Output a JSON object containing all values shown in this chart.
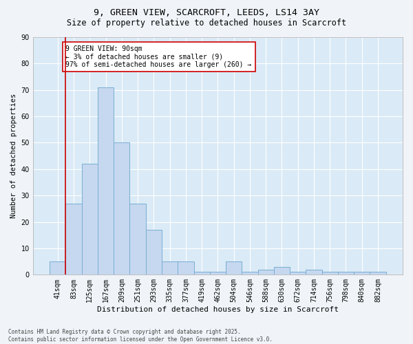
{
  "title": "9, GREEN VIEW, SCARCROFT, LEEDS, LS14 3AY",
  "subtitle": "Size of property relative to detached houses in Scarcroft",
  "xlabel": "Distribution of detached houses by size in Scarcroft",
  "ylabel": "Number of detached properties",
  "categories": [
    "41sqm",
    "83sqm",
    "125sqm",
    "167sqm",
    "209sqm",
    "251sqm",
    "293sqm",
    "335sqm",
    "377sqm",
    "419sqm",
    "462sqm",
    "504sqm",
    "546sqm",
    "588sqm",
    "630sqm",
    "672sqm",
    "714sqm",
    "756sqm",
    "798sqm",
    "840sqm",
    "882sqm"
  ],
  "values": [
    5,
    27,
    42,
    71,
    50,
    27,
    17,
    5,
    5,
    1,
    1,
    5,
    1,
    2,
    3,
    1,
    2,
    1,
    1,
    1,
    1
  ],
  "bar_color": "#c5d8ef",
  "bar_edge_color": "#7aadd4",
  "background_color": "#daeaf6",
  "grid_color": "#ffffff",
  "vline_x": 1,
  "vline_color": "#cc0000",
  "annotation_text": "9 GREEN VIEW: 90sqm\n← 3% of detached houses are smaller (9)\n97% of semi-detached houses are larger (260) →",
  "annotation_box_color": "#ffffff",
  "annotation_box_edge": "#cc0000",
  "ylim": [
    0,
    90
  ],
  "yticks": [
    0,
    10,
    20,
    30,
    40,
    50,
    60,
    70,
    80,
    90
  ],
  "footer": "Contains HM Land Registry data © Crown copyright and database right 2025.\nContains public sector information licensed under the Open Government Licence v3.0.",
  "fig_bg": "#f0f4f8",
  "title_fontsize": 9.5,
  "subtitle_fontsize": 8.5,
  "xlabel_fontsize": 8,
  "ylabel_fontsize": 7.5,
  "tick_fontsize": 7,
  "annot_fontsize": 7,
  "footer_fontsize": 5.5
}
